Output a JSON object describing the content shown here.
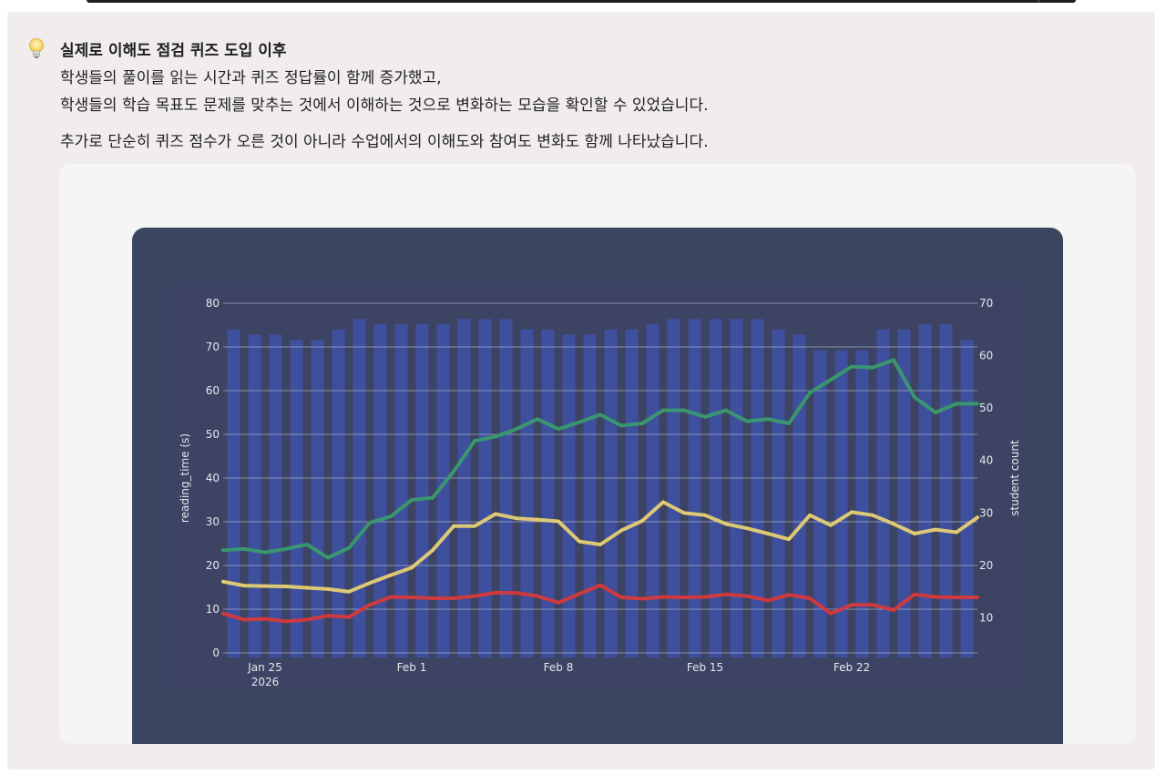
{
  "callout": {
    "icon": "lightbulb-icon",
    "title": "실제로 이해도 점검 퀴즈 도입 이후",
    "line1": "학생들의 풀이를 읽는 시간과 퀴즈 정답률이 함께 증가했고,",
    "line2": "학생들의 학습 목표도 문제를 맞추는 것에서 이해하는 것으로 변화하는 모습을 확인할 수 있었습니다.",
    "line3": "추가로 단순히 퀴즈 점수가 오른 것이 아니라 수업에서의 이해도와 참여도 변화도 함께 나타났습니다."
  },
  "chart_data": {
    "type": "line",
    "ylabel": "reading_time (s)",
    "y2label": "student count",
    "ylim": [
      0,
      80
    ],
    "y2lim": [
      3.3,
      70
    ],
    "grid": true,
    "xticks": [
      {
        "day": 2,
        "label": "Jan 25",
        "sublabel": "2026"
      },
      {
        "day": 9,
        "label": "Feb 1"
      },
      {
        "day": 16,
        "label": "Feb 8"
      },
      {
        "day": 23,
        "label": "Feb 15"
      },
      {
        "day": 30,
        "label": "Feb 22"
      }
    ],
    "yticks": [
      0,
      10,
      20,
      30,
      40,
      50,
      60,
      70,
      80
    ],
    "y2ticks": [
      10,
      20,
      30,
      40,
      50,
      60,
      70
    ],
    "bars": {
      "name": "student count",
      "axis": "right",
      "color": "#3e51a8",
      "values": [
        65,
        64,
        64,
        63,
        63,
        65,
        67,
        66,
        66,
        66,
        66,
        67,
        67,
        67,
        65,
        65,
        64,
        64,
        65,
        65,
        66,
        67,
        67,
        67,
        67,
        67,
        65,
        64,
        61,
        61,
        61,
        65,
        65,
        66,
        66,
        63
      ]
    },
    "series": [
      {
        "color": "#3a9a6e",
        "values": [
          23.5,
          23.8,
          23.0,
          23.8,
          24.8,
          21.8,
          24.0,
          29.8,
          31.2,
          35.0,
          35.5,
          41.5,
          48.5,
          49.5,
          51.2,
          53.5,
          51.2,
          52.8,
          54.5,
          52.0,
          52.5,
          55.5,
          55.5,
          54.0,
          55.5,
          53.0,
          53.5,
          52.5,
          59.5,
          62.5,
          65.5,
          65.3,
          67.0,
          58.5,
          55.0,
          57.0,
          57.0
        ]
      },
      {
        "color": "#e6cf74",
        "values": [
          16.3,
          15.4,
          15.3,
          15.2,
          14.9,
          14.6,
          14.0,
          16.0,
          17.8,
          19.5,
          23.5,
          29.0,
          29.0,
          31.8,
          30.8,
          30.5,
          30.1,
          25.5,
          24.8,
          28.0,
          30.2,
          34.5,
          32.0,
          31.5,
          29.5,
          28.5,
          27.3,
          26.0,
          31.5,
          29.2,
          32.2,
          31.5,
          29.5,
          27.3,
          28.2,
          27.6,
          31.0
        ]
      },
      {
        "color": "#d6393b",
        "values": [
          9.0,
          7.6,
          7.8,
          7.2,
          7.6,
          8.5,
          8.2,
          11.0,
          12.8,
          12.7,
          12.5,
          12.5,
          13.0,
          13.8,
          13.7,
          13.0,
          11.5,
          13.5,
          15.5,
          12.7,
          12.4,
          12.8,
          12.7,
          12.8,
          13.4,
          13.0,
          12.0,
          13.3,
          12.5,
          9.0,
          11.0,
          11.0,
          9.8,
          13.4,
          12.8,
          12.7,
          12.7
        ]
      }
    ]
  }
}
